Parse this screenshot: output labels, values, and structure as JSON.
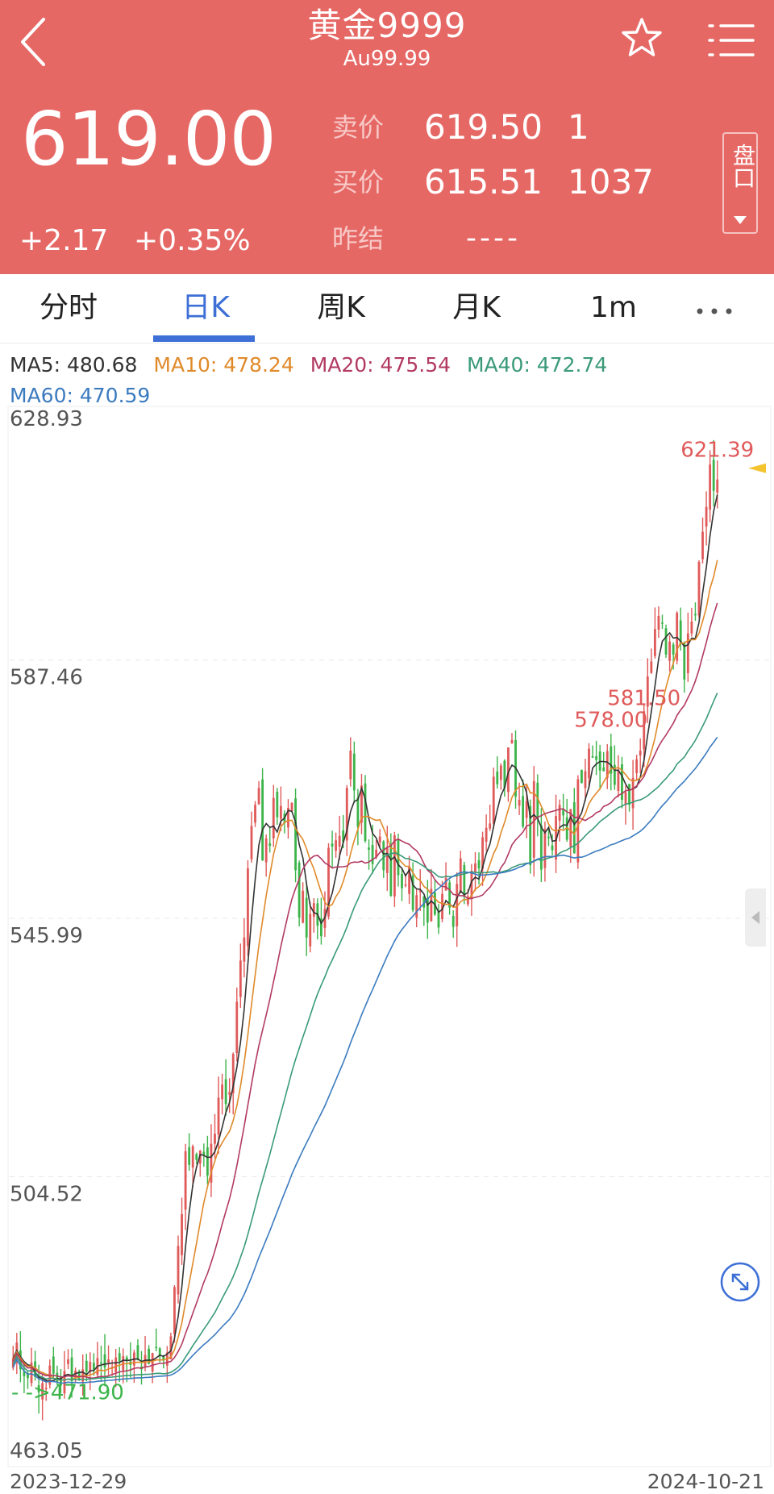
{
  "header": {
    "title": "黄金9999",
    "subtitle": "Au99.99",
    "last_price": "619.00",
    "change_abs": "+2.17",
    "change_pct": "+0.35%",
    "sell_label": "卖价",
    "sell_price": "619.50",
    "sell_volume": "1",
    "buy_label": "买价",
    "buy_price": "615.51",
    "buy_volume": "1037",
    "prev_settle_label": "昨结",
    "prev_settle_value": "----",
    "pankou_label": "盘口"
  },
  "tabs": [
    {
      "label": "分时"
    },
    {
      "label": "日K"
    },
    {
      "label": "周K"
    },
    {
      "label": "月K"
    },
    {
      "label": "1m"
    }
  ],
  "active_tab": "日K",
  "icons": {
    "back": "back-arrow-icon",
    "favorite": "star-icon",
    "menu": "menu-icon",
    "more": "more-dots-icon",
    "zoom": "expand-icon"
  },
  "colors": {
    "header_bg": "#e66865",
    "up": "#e05a5a",
    "down": "#3cb44a",
    "active_tab": "#3d6fd6"
  },
  "ma_legend": {
    "ma5": "MA5: 480.68",
    "ma10": "MA10: 478.24",
    "ma20": "MA20: 475.54",
    "ma40": "MA40: 472.74",
    "ma60": "MA60: 470.59"
  },
  "chart_data": {
    "type": "candlestick",
    "y_ticks": [
      628.93,
      587.46,
      545.99,
      504.52,
      463.05
    ],
    "ylim": [
      463.05,
      628.93
    ],
    "x_start_label": "2023-12-29",
    "x_end_label": "2024-10-21",
    "annotations": [
      {
        "text": "578.00",
        "value": 578.0
      },
      {
        "text": "581.50",
        "value": 581.5
      },
      {
        "text": "621.39",
        "value": 621.39
      }
    ],
    "low_marker": {
      "text": "- ->471.90",
      "value": 471.9
    },
    "current_marker_value": 619.0,
    "closes": [
      478.0,
      480.5,
      476.2,
      475.1,
      474.8,
      477.3,
      475.0,
      472.5,
      474.0,
      473.2,
      476.8,
      475.5,
      474.2,
      473.6,
      475.9,
      477.8,
      474.3,
      476.0,
      474.5,
      476.2,
      475.8,
      477.4,
      476.1,
      478.0,
      477.2,
      476.5,
      477.8,
      476.6,
      478.1,
      477.5,
      478.3,
      477.6,
      476.9,
      478.9,
      477.7,
      476.2,
      478.5,
      477.1,
      478.8,
      479.6,
      478.3,
      477.6,
      478.9,
      481.5,
      489.4,
      496.0,
      501.1,
      511.2,
      509.0,
      512.0,
      509.8,
      511.3,
      510.6,
      507.3,
      512.4,
      514.0,
      519.8,
      521.9,
      518.8,
      520.7,
      526.8,
      535.2,
      541.8,
      545.5,
      556.6,
      563.4,
      566.8,
      569.5,
      557.9,
      561.4,
      560.2,
      567.9,
      564.8,
      566.6,
      563.9,
      566.3,
      567.1,
      556.3,
      548.7,
      553.0,
      545.5,
      549.3,
      551.0,
      547.4,
      545.7,
      550.1,
      559.9,
      560.1,
      561.1,
      561.8,
      560.8,
      569.5,
      575.5,
      569.1,
      563.2,
      569.9,
      561.0,
      559.6,
      557.3,
      559.6,
      561.7,
      556.3,
      560.0,
      552.2,
      561.9,
      555.5,
      553.4,
      554.0,
      556.9,
      549.9,
      552.3,
      553.1,
      550.3,
      547.9,
      553.3,
      549.2,
      547.1,
      552.5,
      555.1,
      550.3,
      547.2,
      554.1,
      558.2,
      552.0,
      552.1,
      556.2,
      557.4,
      556.6,
      561.6,
      563.1,
      563.8,
      571.3,
      570.1,
      573.1,
      569.5,
      576.0,
      577.2,
      568.1,
      567.6,
      563.3,
      567.4,
      557.1,
      570.6,
      564.5,
      556.4,
      562.9,
      561.5,
      559.5,
      565.0,
      566.8,
      565.1,
      561.2,
      566.1,
      559.0,
      570.9,
      570.3,
      572.2,
      575.8,
      574.4,
      574.0,
      572.3,
      572.2,
      575.4,
      571.8,
      570.0,
      572.4,
      567.6,
      568.8,
      566.8,
      571.1,
      574.1,
      575.5,
      581.8,
      587.4,
      589.8,
      595.0,
      597.1,
      595.9,
      590.9,
      593.0,
      590.9,
      597.6,
      592.7,
      586.9,
      594.3,
      596.2,
      597.2,
      605.8,
      610.6,
      614.6,
      621.4,
      617.2,
      619.0
    ]
  }
}
